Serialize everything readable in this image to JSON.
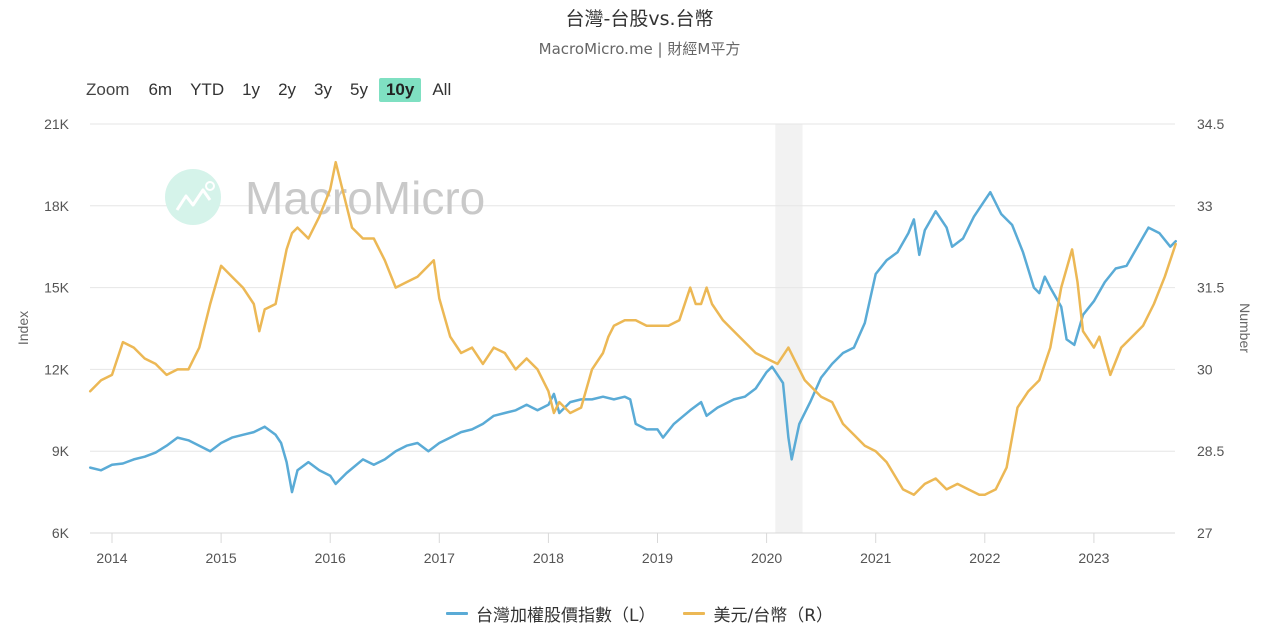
{
  "header": {
    "title": "台灣-台股vs.台幣",
    "subtitle": "MacroMicro.me | 財經M平方"
  },
  "range_selector": {
    "zoom_label": "Zoom",
    "buttons": [
      "6m",
      "YTD",
      "1y",
      "2y",
      "3y",
      "5y",
      "10y",
      "All"
    ],
    "active": "10y"
  },
  "watermark": "MacroMicro",
  "legend": [
    {
      "label": "台灣加權股價指數（L）",
      "color": "#5aabd6"
    },
    {
      "label": "美元/台幣（R）",
      "color": "#ecb855"
    }
  ],
  "chart_data": {
    "type": "line",
    "title": "台灣-台股vs.台幣",
    "subtitle": "MacroMicro.me | 財經M平方",
    "xlabel": "",
    "ylabel_left": "Index",
    "ylabel_right": "Number",
    "x_ticks": [
      "2014",
      "2015",
      "2016",
      "2017",
      "2018",
      "2019",
      "2020",
      "2021",
      "2022",
      "2023"
    ],
    "y_left_ticks": [
      "6K",
      "9K",
      "12K",
      "15K",
      "18K",
      "21K"
    ],
    "y_left_range": [
      6000,
      21000
    ],
    "y_right_ticks": [
      "27",
      "28.5",
      "30",
      "31.5",
      "33",
      "34.5"
    ],
    "y_right_range": [
      27,
      34.5
    ],
    "grid": true,
    "legend_position": "bottom",
    "shaded_band": {
      "from": 2020.08,
      "to": 2020.33,
      "color": "#f2f2f2"
    },
    "series": [
      {
        "name": "台灣加權股價指數（L）",
        "axis": "left",
        "color": "#5aabd6",
        "points": [
          [
            2013.8,
            8400
          ],
          [
            2013.9,
            8300
          ],
          [
            2014.0,
            8500
          ],
          [
            2014.1,
            8550
          ],
          [
            2014.2,
            8700
          ],
          [
            2014.3,
            8800
          ],
          [
            2014.4,
            8950
          ],
          [
            2014.5,
            9200
          ],
          [
            2014.6,
            9500
          ],
          [
            2014.7,
            9400
          ],
          [
            2014.8,
            9200
          ],
          [
            2014.9,
            9000
          ],
          [
            2015.0,
            9300
          ],
          [
            2015.1,
            9500
          ],
          [
            2015.2,
            9600
          ],
          [
            2015.3,
            9700
          ],
          [
            2015.4,
            9900
          ],
          [
            2015.5,
            9600
          ],
          [
            2015.55,
            9300
          ],
          [
            2015.6,
            8600
          ],
          [
            2015.65,
            7500
          ],
          [
            2015.7,
            8300
          ],
          [
            2015.8,
            8600
          ],
          [
            2015.9,
            8300
          ],
          [
            2016.0,
            8100
          ],
          [
            2016.05,
            7800
          ],
          [
            2016.15,
            8200
          ],
          [
            2016.3,
            8700
          ],
          [
            2016.4,
            8500
          ],
          [
            2016.5,
            8700
          ],
          [
            2016.6,
            9000
          ],
          [
            2016.7,
            9200
          ],
          [
            2016.8,
            9300
          ],
          [
            2016.9,
            9000
          ],
          [
            2017.0,
            9300
          ],
          [
            2017.1,
            9500
          ],
          [
            2017.2,
            9700
          ],
          [
            2017.3,
            9800
          ],
          [
            2017.4,
            10000
          ],
          [
            2017.5,
            10300
          ],
          [
            2017.6,
            10400
          ],
          [
            2017.7,
            10500
          ],
          [
            2017.8,
            10700
          ],
          [
            2017.9,
            10500
          ],
          [
            2018.0,
            10700
          ],
          [
            2018.05,
            11100
          ],
          [
            2018.1,
            10400
          ],
          [
            2018.2,
            10800
          ],
          [
            2018.3,
            10900
          ],
          [
            2018.4,
            10900
          ],
          [
            2018.5,
            11000
          ],
          [
            2018.6,
            10900
          ],
          [
            2018.7,
            11000
          ],
          [
            2018.75,
            10900
          ],
          [
            2018.8,
            10000
          ],
          [
            2018.9,
            9800
          ],
          [
            2019.0,
            9800
          ],
          [
            2019.05,
            9500
          ],
          [
            2019.15,
            10000
          ],
          [
            2019.3,
            10500
          ],
          [
            2019.4,
            10800
          ],
          [
            2019.45,
            10300
          ],
          [
            2019.55,
            10600
          ],
          [
            2019.7,
            10900
          ],
          [
            2019.8,
            11000
          ],
          [
            2019.9,
            11300
          ],
          [
            2020.0,
            11900
          ],
          [
            2020.05,
            12100
          ],
          [
            2020.15,
            11500
          ],
          [
            2020.2,
            9500
          ],
          [
            2020.23,
            8700
          ],
          [
            2020.3,
            10000
          ],
          [
            2020.4,
            10800
          ],
          [
            2020.5,
            11700
          ],
          [
            2020.6,
            12200
          ],
          [
            2020.7,
            12600
          ],
          [
            2020.8,
            12800
          ],
          [
            2020.9,
            13700
          ],
          [
            2021.0,
            15500
          ],
          [
            2021.1,
            16000
          ],
          [
            2021.2,
            16300
          ],
          [
            2021.3,
            17000
          ],
          [
            2021.35,
            17500
          ],
          [
            2021.4,
            16200
          ],
          [
            2021.45,
            17100
          ],
          [
            2021.55,
            17800
          ],
          [
            2021.65,
            17200
          ],
          [
            2021.7,
            16500
          ],
          [
            2021.8,
            16800
          ],
          [
            2021.9,
            17600
          ],
          [
            2022.0,
            18200
          ],
          [
            2022.05,
            18500
          ],
          [
            2022.15,
            17700
          ],
          [
            2022.25,
            17300
          ],
          [
            2022.35,
            16300
          ],
          [
            2022.45,
            15000
          ],
          [
            2022.5,
            14800
          ],
          [
            2022.55,
            15400
          ],
          [
            2022.6,
            15000
          ],
          [
            2022.7,
            14300
          ],
          [
            2022.75,
            13100
          ],
          [
            2022.82,
            12900
          ],
          [
            2022.9,
            14000
          ],
          [
            2023.0,
            14500
          ],
          [
            2023.1,
            15200
          ],
          [
            2023.2,
            15700
          ],
          [
            2023.3,
            15800
          ],
          [
            2023.4,
            16500
          ],
          [
            2023.5,
            17200
          ],
          [
            2023.6,
            17000
          ],
          [
            2023.7,
            16500
          ],
          [
            2023.75,
            16700
          ]
        ]
      },
      {
        "name": "美元/台幣（R）",
        "axis": "right",
        "color": "#ecb855",
        "points": [
          [
            2013.8,
            29.6
          ],
          [
            2013.9,
            29.8
          ],
          [
            2014.0,
            29.9
          ],
          [
            2014.1,
            30.5
          ],
          [
            2014.2,
            30.4
          ],
          [
            2014.3,
            30.2
          ],
          [
            2014.4,
            30.1
          ],
          [
            2014.5,
            29.9
          ],
          [
            2014.6,
            30.0
          ],
          [
            2014.7,
            30.0
          ],
          [
            2014.8,
            30.4
          ],
          [
            2014.9,
            31.2
          ],
          [
            2015.0,
            31.9
          ],
          [
            2015.1,
            31.7
          ],
          [
            2015.2,
            31.5
          ],
          [
            2015.3,
            31.2
          ],
          [
            2015.35,
            30.7
          ],
          [
            2015.4,
            31.1
          ],
          [
            2015.5,
            31.2
          ],
          [
            2015.6,
            32.2
          ],
          [
            2015.65,
            32.5
          ],
          [
            2015.7,
            32.6
          ],
          [
            2015.8,
            32.4
          ],
          [
            2015.9,
            32.8
          ],
          [
            2016.0,
            33.3
          ],
          [
            2016.05,
            33.8
          ],
          [
            2016.1,
            33.4
          ],
          [
            2016.2,
            32.6
          ],
          [
            2016.3,
            32.4
          ],
          [
            2016.4,
            32.4
          ],
          [
            2016.5,
            32.0
          ],
          [
            2016.6,
            31.5
          ],
          [
            2016.7,
            31.6
          ],
          [
            2016.8,
            31.7
          ],
          [
            2016.95,
            32.0
          ],
          [
            2017.0,
            31.3
          ],
          [
            2017.1,
            30.6
          ],
          [
            2017.2,
            30.3
          ],
          [
            2017.3,
            30.4
          ],
          [
            2017.4,
            30.1
          ],
          [
            2017.5,
            30.4
          ],
          [
            2017.6,
            30.3
          ],
          [
            2017.7,
            30.0
          ],
          [
            2017.8,
            30.2
          ],
          [
            2017.9,
            30.0
          ],
          [
            2018.0,
            29.6
          ],
          [
            2018.05,
            29.2
          ],
          [
            2018.1,
            29.4
          ],
          [
            2018.2,
            29.2
          ],
          [
            2018.3,
            29.3
          ],
          [
            2018.4,
            30.0
          ],
          [
            2018.5,
            30.3
          ],
          [
            2018.55,
            30.6
          ],
          [
            2018.6,
            30.8
          ],
          [
            2018.7,
            30.9
          ],
          [
            2018.8,
            30.9
          ],
          [
            2018.9,
            30.8
          ],
          [
            2019.0,
            30.8
          ],
          [
            2019.1,
            30.8
          ],
          [
            2019.2,
            30.9
          ],
          [
            2019.3,
            31.5
          ],
          [
            2019.35,
            31.2
          ],
          [
            2019.4,
            31.2
          ],
          [
            2019.45,
            31.5
          ],
          [
            2019.5,
            31.2
          ],
          [
            2019.6,
            30.9
          ],
          [
            2019.7,
            30.7
          ],
          [
            2019.8,
            30.5
          ],
          [
            2019.9,
            30.3
          ],
          [
            2020.0,
            30.2
          ],
          [
            2020.1,
            30.1
          ],
          [
            2020.2,
            30.4
          ],
          [
            2020.3,
            30.0
          ],
          [
            2020.35,
            29.8
          ],
          [
            2020.45,
            29.6
          ],
          [
            2020.5,
            29.5
          ],
          [
            2020.6,
            29.4
          ],
          [
            2020.7,
            29.0
          ],
          [
            2020.8,
            28.8
          ],
          [
            2020.9,
            28.6
          ],
          [
            2021.0,
            28.5
          ],
          [
            2021.1,
            28.3
          ],
          [
            2021.25,
            27.8
          ],
          [
            2021.35,
            27.7
          ],
          [
            2021.45,
            27.9
          ],
          [
            2021.55,
            28.0
          ],
          [
            2021.65,
            27.8
          ],
          [
            2021.75,
            27.9
          ],
          [
            2021.85,
            27.8
          ],
          [
            2021.95,
            27.7
          ],
          [
            2022.0,
            27.7
          ],
          [
            2022.1,
            27.8
          ],
          [
            2022.2,
            28.2
          ],
          [
            2022.3,
            29.3
          ],
          [
            2022.4,
            29.6
          ],
          [
            2022.5,
            29.8
          ],
          [
            2022.6,
            30.4
          ],
          [
            2022.7,
            31.5
          ],
          [
            2022.8,
            32.2
          ],
          [
            2022.85,
            31.6
          ],
          [
            2022.9,
            30.7
          ],
          [
            2023.0,
            30.4
          ],
          [
            2023.05,
            30.6
          ],
          [
            2023.15,
            29.9
          ],
          [
            2023.25,
            30.4
          ],
          [
            2023.35,
            30.6
          ],
          [
            2023.45,
            30.8
          ],
          [
            2023.55,
            31.2
          ],
          [
            2023.65,
            31.7
          ],
          [
            2023.75,
            32.3
          ]
        ]
      }
    ]
  }
}
